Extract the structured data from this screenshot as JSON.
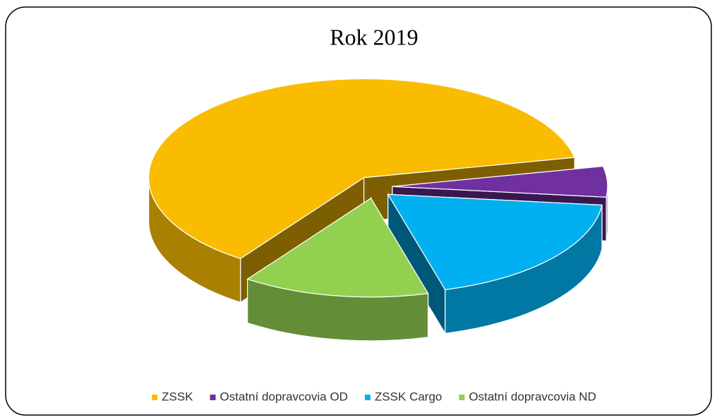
{
  "chart_data": {
    "type": "pie3d",
    "title": "Rok 2019",
    "categories": [
      "ZSSK",
      "Ostatní dopravcovia OD",
      "ZSSK Cargo",
      "Ostatní dopravcovia ND"
    ],
    "values": [
      62,
      5,
      19,
      14
    ],
    "colors": [
      "#f9bc00",
      "#7030a0",
      "#00b0f0",
      "#92d050"
    ],
    "legend": "bottom"
  }
}
